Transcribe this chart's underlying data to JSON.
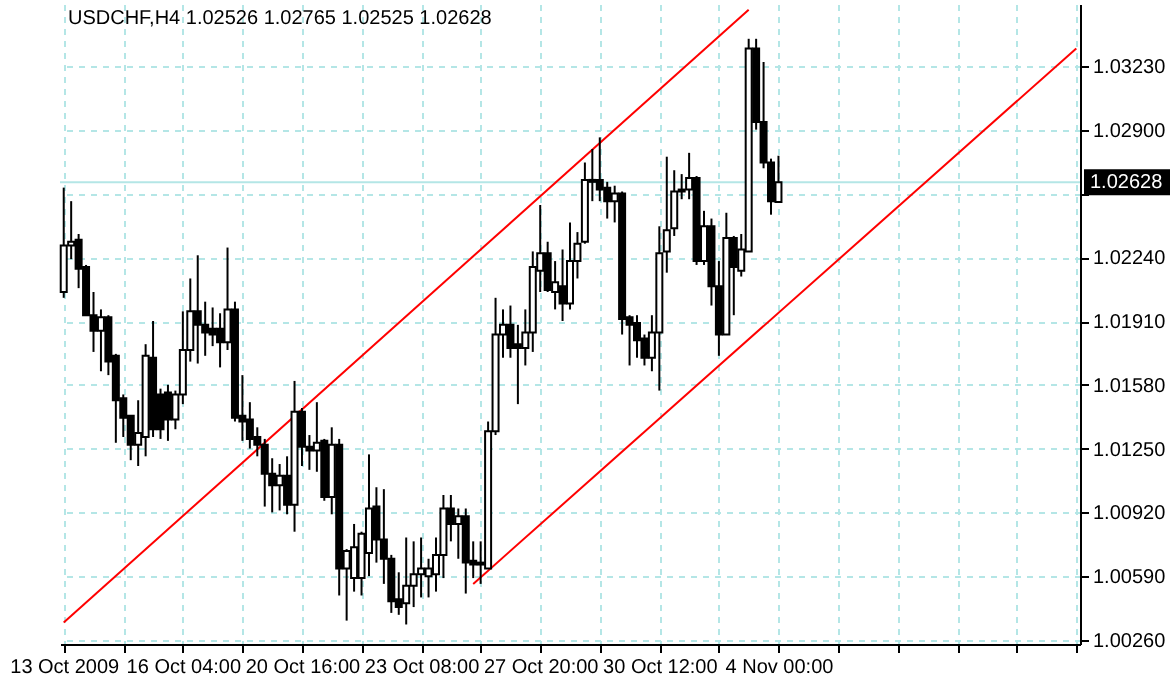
{
  "chart_data": {
    "type": "candlestick",
    "title": "USDCHF,H4  1.02526  1.02765  1.02525  1.02628",
    "categories": [
      "13 Oct 2009",
      null,
      null,
      null,
      null,
      null,
      null,
      null,
      null,
      null,
      null,
      null,
      null,
      null,
      null,
      null,
      "16 Oct 04:00",
      null,
      null,
      null,
      null,
      null,
      null,
      null,
      null,
      null,
      null,
      null,
      null,
      null,
      null,
      null,
      "20 Oct 16:00",
      null,
      null,
      null,
      null,
      null,
      null,
      null,
      null,
      null,
      null,
      null,
      null,
      null,
      null,
      null,
      "23 Oct 08:00",
      null,
      null,
      null,
      null,
      null,
      null,
      null,
      null,
      null,
      null,
      null,
      null,
      null,
      null,
      null,
      "27 Oct 20:00",
      null,
      null,
      null,
      null,
      null,
      null,
      null,
      null,
      null,
      null,
      null,
      null,
      null,
      null,
      null,
      "30 Oct 12:00",
      null,
      null,
      null,
      null,
      null,
      null,
      null,
      null,
      null,
      null,
      null,
      null,
      null,
      null,
      null,
      "4 Nov 00:00",
      null,
      null,
      null,
      null,
      null,
      null,
      null,
      null,
      null,
      null,
      null,
      null,
      null,
      null,
      null,
      null,
      null,
      null,
      null,
      null,
      null,
      null,
      null,
      null,
      null,
      null,
      null,
      null,
      null,
      null,
      null,
      null,
      null,
      null,
      null,
      null,
      null,
      null,
      null,
      null
    ],
    "ylim": [
      1.00239,
      1.0355
    ],
    "yticks": [
      {
        "value": 1.0026,
        "label": "1.00260"
      },
      {
        "value": 1.0059,
        "label": "1.00590"
      },
      {
        "value": 1.0092,
        "label": "1.00920"
      },
      {
        "value": 1.0125,
        "label": "1.01250"
      },
      {
        "value": 1.0158,
        "label": "1.01580"
      },
      {
        "value": 1.0191,
        "label": "1.01910"
      },
      {
        "value": 1.0224,
        "label": "1.02240"
      },
      {
        "value": 1.0257,
        "label": null
      },
      {
        "value": 1.029,
        "label": "1.02900"
      },
      {
        "value": 1.0323,
        "label": "1.03230"
      }
    ],
    "grid": true,
    "ref_lines": [
      {
        "axis": "y",
        "value": 1.02628,
        "label": "1.02628",
        "color": "#b4e6e6"
      }
    ],
    "ohlc": [
      [
        1.0206,
        1.026,
        1.0203,
        1.023
      ],
      [
        1.023,
        1.0253,
        1.0223,
        1.0232
      ],
      [
        1.0233,
        1.0236,
        1.0208,
        1.0218
      ],
      [
        1.0219,
        1.022,
        1.0194,
        1.0194
      ],
      [
        1.0194,
        1.0206,
        1.0175,
        1.0186
      ],
      [
        1.0186,
        1.0197,
        1.0165,
        1.0193
      ],
      [
        1.0193,
        1.0194,
        1.0163,
        1.017
      ],
      [
        1.0173,
        1.0174,
        1.0128,
        1.015
      ],
      [
        1.0151,
        1.0153,
        1.0131,
        1.0141
      ],
      [
        1.0142,
        1.0142,
        1.0119,
        1.0127
      ],
      [
        1.0127,
        1.015,
        1.0116,
        1.0133
      ],
      [
        1.0131,
        1.0179,
        1.0121,
        1.0173
      ],
      [
        1.0172,
        1.0191,
        1.0131,
        1.0135
      ],
      [
        1.0153,
        1.0156,
        1.013,
        1.0135
      ],
      [
        1.0154,
        1.0158,
        1.0129,
        1.014
      ],
      [
        1.014,
        1.0155,
        1.0135,
        1.0153
      ],
      [
        1.0153,
        1.0196,
        1.0148,
        1.0176
      ],
      [
        1.0176,
        1.0213,
        1.017,
        1.0196
      ],
      [
        1.0196,
        1.0225,
        1.0169,
        1.0189
      ],
      [
        1.0189,
        1.0201,
        1.0173,
        1.0185
      ],
      [
        1.0187,
        1.0198,
        1.0178,
        1.0184
      ],
      [
        1.0187,
        1.0195,
        1.0167,
        1.018
      ],
      [
        1.018,
        1.0229,
        1.0176,
        1.0197
      ],
      [
        1.0197,
        1.0201,
        1.0139,
        1.0141
      ],
      [
        1.0142,
        1.0163,
        1.0129,
        1.0139
      ],
      [
        1.014,
        1.0149,
        1.0125,
        1.013
      ],
      [
        1.0131,
        1.0136,
        1.0121,
        1.0127
      ],
      [
        1.0127,
        1.013,
        1.0095,
        1.0112
      ],
      [
        1.0112,
        1.012,
        1.0092,
        1.0106
      ],
      [
        1.0106,
        1.0117,
        1.0093,
        1.0111
      ],
      [
        1.0111,
        1.0121,
        1.0091,
        1.0096
      ],
      [
        1.0096,
        1.016,
        1.0082,
        1.0144
      ],
      [
        1.0144,
        1.0146,
        1.0116,
        1.0126
      ],
      [
        1.0126,
        1.0132,
        1.0114,
        1.0124
      ],
      [
        1.0124,
        1.0149,
        1.0113,
        1.0128
      ],
      [
        1.0129,
        1.013,
        1.0098,
        1.01
      ],
      [
        1.01,
        1.0136,
        1.0091,
        1.0127
      ],
      [
        1.0127,
        1.013,
        1.0049,
        1.0063
      ],
      [
        1.0063,
        1.0073,
        1.0036,
        1.0072
      ],
      [
        1.0058,
        1.0086,
        1.0051,
        1.0074
      ],
      [
        1.0058,
        1.0082,
        1.0049,
        1.0081
      ],
      [
        1.0071,
        1.0122,
        1.0059,
        1.0094
      ],
      [
        1.0095,
        1.0105,
        1.0066,
        1.0078
      ],
      [
        1.0078,
        1.0104,
        1.0055,
        1.0068
      ],
      [
        1.0068,
        1.007,
        1.004,
        1.0046
      ],
      [
        1.0047,
        1.0061,
        1.0039,
        1.0043
      ],
      [
        1.0045,
        1.0079,
        1.0034,
        1.0054
      ],
      [
        1.0054,
        1.0077,
        1.0043,
        1.006
      ],
      [
        1.006,
        1.0079,
        1.0048,
        1.0063
      ],
      [
        1.0059,
        1.0068,
        1.0048,
        1.0063
      ],
      [
        1.006,
        1.0079,
        1.0051,
        1.007
      ],
      [
        1.007,
        1.0101,
        1.0058,
        1.0094
      ],
      [
        1.0094,
        1.0101,
        1.0077,
        1.0086
      ],
      [
        1.0086,
        1.0094,
        1.0068,
        1.009
      ],
      [
        1.009,
        1.0094,
        1.005,
        1.0066
      ],
      [
        1.0067,
        1.0077,
        1.0058,
        1.0065
      ],
      [
        1.0065,
        1.0077,
        1.0055,
        1.0066
      ],
      [
        1.0063,
        1.0139,
        1.0063,
        1.0134
      ],
      [
        1.0134,
        1.0203,
        1.0132,
        1.0184
      ],
      [
        1.0184,
        1.0197,
        1.0172,
        1.0189
      ],
      [
        1.0189,
        1.0199,
        1.0172,
        1.0177
      ],
      [
        1.0179,
        1.0189,
        1.0148,
        1.0177
      ],
      [
        1.0177,
        1.0197,
        1.0168,
        1.0185
      ],
      [
        1.0185,
        1.0227,
        1.0175,
        1.0219
      ],
      [
        1.0217,
        1.0251,
        1.0206,
        1.0226
      ],
      [
        1.0226,
        1.0232,
        1.0206,
        1.0207
      ],
      [
        1.0206,
        1.0222,
        1.0197,
        1.0211
      ],
      [
        1.0209,
        1.0228,
        1.0191,
        1.02
      ],
      [
        1.02,
        1.0242,
        1.0197,
        1.0222
      ],
      [
        1.0222,
        1.0237,
        1.0213,
        1.0231
      ],
      [
        1.0232,
        1.0273,
        1.0231,
        1.0264
      ],
      [
        1.0264,
        1.028,
        1.0253,
        1.0263
      ],
      [
        1.0264,
        1.0286,
        1.0253,
        1.0259
      ],
      [
        1.026,
        1.0263,
        1.0244,
        1.0253
      ],
      [
        1.0253,
        1.0261,
        1.0242,
        1.0257
      ],
      [
        1.0257,
        1.0258,
        1.0184,
        1.0192
      ],
      [
        1.0193,
        1.0194,
        1.0168,
        1.0189
      ],
      [
        1.019,
        1.0194,
        1.0172,
        1.0181
      ],
      [
        1.0182,
        1.0184,
        1.0168,
        1.0172
      ],
      [
        1.0172,
        1.0194,
        1.0165,
        1.0185
      ],
      [
        1.0185,
        1.024,
        1.0155,
        1.0226
      ],
      [
        1.0227,
        1.0276,
        1.0216,
        1.0238
      ],
      [
        1.0239,
        1.0269,
        1.0235,
        1.0258
      ],
      [
        1.0259,
        1.0267,
        1.0254,
        1.0258
      ],
      [
        1.0259,
        1.0278,
        1.0254,
        1.0265
      ],
      [
        1.0265,
        1.0266,
        1.022,
        1.0222
      ],
      [
        1.0222,
        1.0248,
        1.022,
        1.024
      ],
      [
        1.024,
        1.0244,
        1.0199,
        1.0209
      ],
      [
        1.0209,
        1.0222,
        1.0173,
        1.0184
      ],
      [
        1.0184,
        1.0247,
        1.0184,
        1.0234
      ],
      [
        1.0234,
        1.0235,
        1.0194,
        1.0219
      ],
      [
        1.0217,
        1.0236,
        1.0214,
        1.0228
      ],
      [
        1.0227,
        1.0337,
        1.0227,
        1.0332
      ],
      [
        1.0332,
        1.0337,
        1.029,
        1.0294
      ],
      [
        1.0294,
        1.0325,
        1.027,
        1.0273
      ],
      [
        1.0273,
        1.0275,
        1.0246,
        1.0253
      ],
      [
        1.02526,
        1.02765,
        1.02525,
        1.02628
      ],
      null,
      null,
      null,
      null,
      null,
      null,
      null,
      null,
      null,
      null,
      null,
      null,
      null,
      null,
      null,
      null,
      null,
      null,
      null,
      null,
      null,
      null,
      null,
      null,
      null,
      null,
      null,
      null,
      null,
      null,
      null,
      null,
      null,
      null,
      null,
      null,
      null,
      null,
      null,
      null
    ],
    "colors": [
      "#ffffff",
      "#ffffff",
      "#000000",
      "#000000",
      "#000000",
      "#ffffff",
      "#000000",
      "#000000",
      "#000000",
      "#000000",
      "#ffffff",
      "#ffffff",
      "#000000",
      "#000000",
      "#000000",
      "#ffffff",
      "#ffffff",
      "#ffffff",
      "#000000",
      "#000000",
      "#000000",
      "#000000",
      "#ffffff",
      "#000000",
      "#000000",
      "#000000",
      "#000000",
      "#000000",
      "#000000",
      "#ffffff",
      "#000000",
      "#ffffff",
      "#000000",
      "#000000",
      "#ffffff",
      "#000000",
      "#ffffff",
      "#000000",
      "#ffffff",
      "#ffffff",
      "#ffffff",
      "#ffffff",
      "#000000",
      "#000000",
      "#000000",
      "#000000",
      "#ffffff",
      "#ffffff",
      "#ffffff",
      "#ffffff",
      "#ffffff",
      "#ffffff",
      "#000000",
      "#ffffff",
      "#000000",
      "#000000",
      "#ffffff",
      "#ffffff",
      "#ffffff",
      "#ffffff",
      "#000000",
      "#000000",
      "#ffffff",
      "#ffffff",
      "#ffffff",
      "#000000",
      "#ffffff",
      "#000000",
      "#ffffff",
      "#ffffff",
      "#ffffff",
      "#000000",
      "#000000",
      "#000000",
      "#ffffff",
      "#000000",
      "#000000",
      "#000000",
      "#000000",
      "#ffffff",
      "#ffffff",
      "#ffffff",
      "#ffffff",
      "#000000",
      "#ffffff",
      "#000000",
      "#ffffff",
      "#000000",
      "#000000",
      "#ffffff",
      "#000000",
      "#ffffff",
      "#ffffff",
      "#000000",
      "#000000",
      "#000000",
      "#ffffff",
      null,
      null,
      null,
      null,
      null,
      null,
      null,
      null,
      null,
      null,
      null,
      null,
      null,
      null,
      null,
      null,
      null,
      null,
      null,
      null,
      null,
      null,
      null,
      null,
      null,
      null,
      null,
      null,
      null,
      null,
      null,
      null,
      null,
      null,
      null,
      null,
      null,
      null,
      null,
      null
    ],
    "series": [
      {
        "type": "line",
        "color": "#ff0000",
        "values": [
          1.0035,
          null,
          null,
          null,
          null,
          null,
          null,
          null,
          null,
          null,
          null,
          null,
          null,
          null,
          null,
          null,
          null,
          null,
          null,
          null,
          null,
          null,
          null,
          null,
          null,
          null,
          null,
          null,
          null,
          null,
          null,
          null,
          null,
          null,
          null,
          null,
          null,
          null,
          null,
          null,
          null,
          null,
          null,
          null,
          null,
          null,
          null,
          null,
          null,
          null,
          null,
          null,
          null,
          null,
          null,
          null,
          null,
          null,
          null,
          null,
          null,
          null,
          null,
          null,
          null,
          null,
          null,
          null,
          null,
          null,
          null,
          null,
          null,
          null,
          null,
          null,
          null,
          null,
          null,
          null,
          null,
          null,
          null,
          null,
          null,
          null,
          null,
          null,
          null,
          null,
          null,
          null,
          1.0352,
          null,
          null,
          null,
          null,
          null,
          null,
          null,
          null,
          null,
          null,
          null,
          null,
          null,
          null,
          null,
          null,
          null,
          null,
          null,
          null,
          null,
          null,
          null,
          null,
          null,
          null,
          null,
          null,
          null,
          null,
          null,
          null,
          null,
          null,
          null,
          null,
          null,
          null,
          null,
          null,
          null,
          null,
          null,
          null
        ]
      },
      {
        "type": "line",
        "color": "#ff0000",
        "values": [
          null,
          null,
          null,
          null,
          null,
          null,
          null,
          null,
          null,
          null,
          null,
          null,
          null,
          null,
          null,
          null,
          null,
          null,
          null,
          null,
          null,
          null,
          null,
          null,
          null,
          null,
          null,
          null,
          null,
          null,
          null,
          null,
          null,
          null,
          null,
          null,
          null,
          null,
          null,
          null,
          null,
          null,
          null,
          null,
          null,
          null,
          null,
          null,
          null,
          null,
          null,
          null,
          null,
          null,
          null,
          1.0055,
          null,
          null,
          null,
          null,
          null,
          null,
          null,
          null,
          null,
          null,
          null,
          null,
          null,
          null,
          null,
          null,
          null,
          null,
          null,
          null,
          null,
          null,
          null,
          null,
          null,
          null,
          null,
          null,
          null,
          null,
          null,
          null,
          null,
          null,
          null,
          null,
          null,
          null,
          null,
          null,
          null,
          null,
          null,
          null,
          null,
          null,
          null,
          null,
          null,
          null,
          null,
          null,
          null,
          null,
          null,
          null,
          null,
          null,
          null,
          null,
          null,
          null,
          null,
          null,
          null,
          null,
          null,
          null,
          null,
          null,
          null,
          null,
          null,
          null,
          null,
          null,
          null,
          null,
          null,
          null,
          1.0332
        ]
      }
    ]
  }
}
